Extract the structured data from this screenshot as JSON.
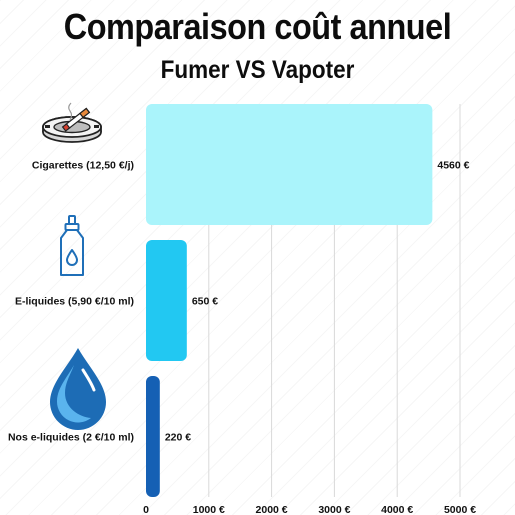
{
  "title": "Comparaison coût annuel",
  "subtitle": "Fumer VS Vapoter",
  "colors": {
    "cigarettes": "#aaf4fb",
    "eliquides": "#22c8f2",
    "nos_eliquides": "#1560b4",
    "grid": "#d9d9d9",
    "icon": "#1f6fb8"
  },
  "icons": [
    "ashtray-cigarette-icon",
    "eliquid-bottle-icon",
    "water-drop-icon"
  ],
  "chart_data": {
    "type": "bar",
    "orientation": "horizontal",
    "categories": [
      "Cigarettes (12,50 €/j)",
      "E-liquides (5,90 €/10 ml)",
      "Nos e-liquides (2 €/10 ml)"
    ],
    "values": [
      4560,
      650,
      220
    ],
    "value_labels": [
      "4560 €",
      "650 €",
      "220 €"
    ],
    "x_ticks": [
      0,
      1000,
      2000,
      3000,
      4000,
      5000
    ],
    "x_tick_labels": [
      "0",
      "1000 €",
      "2000 €",
      "3000 €",
      "4000 €",
      "5000 €"
    ],
    "xlim": [
      0,
      5000
    ],
    "grid": true,
    "legend": "none"
  }
}
